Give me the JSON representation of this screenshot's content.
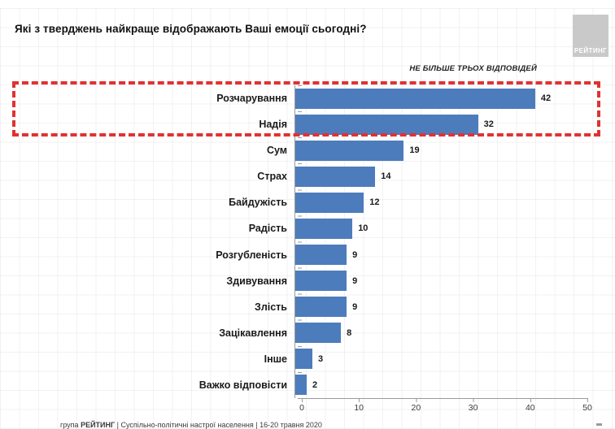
{
  "title": "Які з тверджень найкраще відображають Ваші емоції сьогодні?",
  "logo": {
    "text": "РЕЙТИНГ"
  },
  "footer": {
    "prefix": "група ",
    "brand": "РЕЙТИНГ",
    "rest": " | Суспільно-політичні настрої населення | 16-20 травня 2020"
  },
  "colors": {
    "bar": "#4d7cbc",
    "highlight_border": "#e03232",
    "logo_bg": "#c9c9c9",
    "axis": "#9a9a9a"
  },
  "chart_data": {
    "type": "bar",
    "orientation": "horizontal",
    "title": "Які з тверджень найкраще відображають Ваші емоції сьогодні?",
    "note": "НЕ БІЛЬШЕ ТРЬОХ ВІДПОВІДЕЙ",
    "categories": [
      "Розчарування",
      "Надія",
      "Сум",
      "Страх",
      "Байдужість",
      "Радість",
      "Розгубленість",
      "Здивування",
      "Злість",
      "Зацікавлення",
      "Інше",
      "Важко відповісти"
    ],
    "values": [
      42,
      32,
      19,
      14,
      12,
      10,
      9,
      9,
      9,
      8,
      3,
      2
    ],
    "x_ticks": [
      0,
      10,
      20,
      30,
      40,
      50
    ],
    "xlim": [
      0,
      50
    ],
    "xlabel": "",
    "ylabel": "",
    "grid": true,
    "legend": false,
    "bar_color": "#4d7cbc",
    "highlighted_categories": [
      "Розчарування",
      "Надія"
    ],
    "value_labels_shown": true
  }
}
